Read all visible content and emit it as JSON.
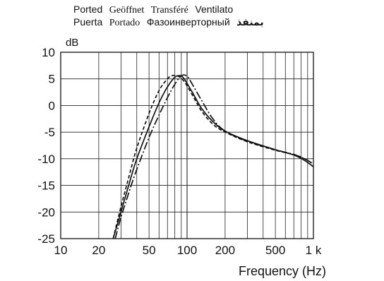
{
  "legend": {
    "row1": [
      "Ported",
      "Geöffnet",
      "Transféré",
      "Ventilato"
    ],
    "row2": [
      "Puerta",
      "Portado",
      "Фазоинверторный",
      "بمنفذ"
    ]
  },
  "chart_data": {
    "type": "line",
    "ylabel": "dB",
    "xlabel": "Frequency (Hz)",
    "xscale": "log",
    "xlim": [
      10,
      1000
    ],
    "ylim": [
      -25,
      10
    ],
    "grid": true,
    "yticks": [
      10,
      5,
      0,
      -5,
      -10,
      -15,
      -20,
      -25
    ],
    "xtick_labels": [
      {
        "value": 10,
        "label": "10"
      },
      {
        "value": 20,
        "label": "20"
      },
      {
        "value": 50,
        "label": "50"
      },
      {
        "value": 100,
        "label": "100"
      },
      {
        "value": 200,
        "label": "200"
      },
      {
        "value": 500,
        "label": "500"
      },
      {
        "value": 1000,
        "label": "1 k"
      }
    ],
    "series": [
      {
        "style": "solid",
        "x": [
          26,
          30,
          35,
          40,
          50,
          60,
          70,
          80,
          88,
          95,
          110,
          130,
          160,
          200,
          300,
          500,
          700,
          850,
          1000
        ],
        "y": [
          -25,
          -20,
          -14.5,
          -10,
          -4,
          0.5,
          3.5,
          5.3,
          5.6,
          5,
          2.5,
          -0.5,
          -3,
          -4.8,
          -6.6,
          -8.3,
          -9.3,
          -10.3,
          -11.5
        ]
      },
      {
        "style": "dashed",
        "x": [
          26,
          30,
          35,
          40,
          50,
          60,
          70,
          76,
          85,
          95,
          110,
          130,
          160,
          200,
          300,
          500,
          700,
          850,
          1000
        ],
        "y": [
          -25,
          -19,
          -13,
          -8,
          -1.5,
          2.8,
          5,
          5.6,
          5.5,
          4.5,
          2,
          -1,
          -3.5,
          -5,
          -6.8,
          -8.4,
          -9.2,
          -10,
          -11
        ]
      },
      {
        "style": "dashdot",
        "x": [
          27,
          30,
          35,
          40,
          50,
          60,
          70,
          80,
          90,
          100,
          110,
          130,
          160,
          200,
          300,
          500,
          700,
          850,
          1000
        ],
        "y": [
          -25,
          -21,
          -16,
          -12,
          -6,
          -1.8,
          1.5,
          4,
          5.6,
          5.5,
          4,
          1,
          -2.5,
          -4.8,
          -6.7,
          -8.3,
          -9.2,
          -10,
          -11
        ]
      }
    ]
  }
}
